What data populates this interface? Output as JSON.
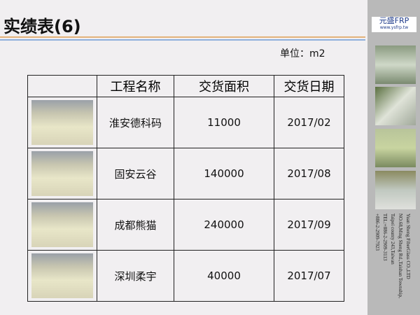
{
  "title": "实绩表(6)",
  "unit": "单位：m2",
  "table": {
    "headers": [
      "",
      "工程名称",
      "交货面积",
      "交货日期"
    ],
    "rows": [
      {
        "name": "淮安德科码",
        "area": "11000",
        "date": "2017/02"
      },
      {
        "name": "固安云谷",
        "area": "140000",
        "date": "2017/08"
      },
      {
        "name": "成都熊猫",
        "area": "240000",
        "date": "2017/09"
      },
      {
        "name": "深圳柔宇",
        "area": "40000",
        "date": "2017/07"
      }
    ]
  },
  "sidebar": {
    "logo_text": "元盛FRP",
    "logo_url": "www.ysfrp.tw",
    "address": [
      "Yuan Sheng FiberGlass CO.,LTD",
      "NO.68,Ming Sheng Rd.,Taishan Township,",
      "Taipei county 243,Taiwan",
      "TEL:+886-2-2909-3113",
      "+886-2-2909-7923"
    ]
  }
}
